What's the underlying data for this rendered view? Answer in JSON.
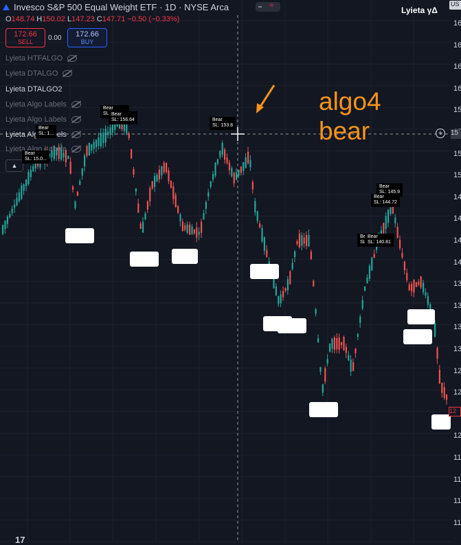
{
  "header": {
    "symbol_title": "Invesco S&P 500 Equal Weight ETF · 1D · NYSE Arca",
    "toggle_icon": "wave-icon",
    "user_name": "Lyieta γΔ"
  },
  "ohlc": {
    "open_key": "O",
    "open": "148.74",
    "high_key": "H",
    "high": "150.02",
    "low_key": "L",
    "low": "147.23",
    "close_key": "C",
    "close": "147.71",
    "change": "−0.50 (−0.33%)"
  },
  "trade": {
    "sell_price": "172.66",
    "sell_label": "SELL",
    "spread": "0.00",
    "buy_price": "172.66",
    "buy_label": "BUY"
  },
  "indicators": [
    {
      "label": "Lyieta HTFALGO",
      "icon": "eye-hidden-icon"
    },
    {
      "label": "Lyieta DTALGO",
      "icon": "eye-hidden-icon"
    },
    {
      "label": "Lyieta DTALGO2",
      "icon": ""
    },
    {
      "label": "Lyieta Algo Labels",
      "icon": "eye-hidden-icon"
    },
    {
      "label": "Lyieta Algo Labels",
      "icon": "eye-hidden-icon"
    },
    {
      "label": "Lyieta Algo Labels",
      "icon": "eye-hidden-icon"
    },
    {
      "label": "Lyieta Algo Labels",
      "icon": "eye-hidden-icon"
    }
  ],
  "collapse_icon": "chevron-up-icon",
  "annotation": {
    "line1": "algo4",
    "line2": "bear",
    "arrow_icon": "arrow-down-left-icon"
  },
  "axis": {
    "badge": "US",
    "ticks": [
      "16",
      "16",
      "16",
      "16",
      "15",
      "15",
      "15",
      "15",
      "14",
      "14",
      "14",
      "14",
      "13",
      "13",
      "13",
      "13",
      "12",
      "12",
      "12",
      "12",
      "11",
      "11",
      "11",
      "11"
    ],
    "crosshair_label": "15",
    "last_price": "12"
  },
  "bear_labels": [
    {
      "title": "Bear",
      "sl": "SL: 15.0..."
    },
    {
      "title": "Bear",
      "sl": "SL: 1..."
    },
    {
      "title": "Bear",
      "sl": "SL: 156.64"
    },
    {
      "title": "Bear",
      "sl": "SL: 153.8"
    },
    {
      "title": "Bear",
      "sl": "SL: 145.9"
    },
    {
      "title": "Bear",
      "sl": "SL: 144.72"
    },
    {
      "title": "Be",
      "sl": "SL"
    },
    {
      "title": "Bear",
      "sl": "SL: 140.81"
    }
  ],
  "tv_logo": "17",
  "colors": {
    "bg": "#131722",
    "up": "#26a69a",
    "down": "#ef5350",
    "accent": "#f7931a"
  }
}
